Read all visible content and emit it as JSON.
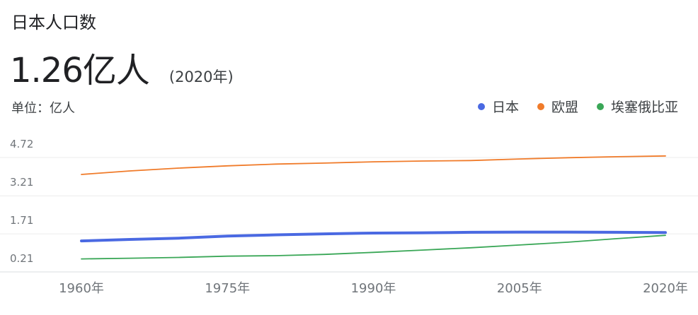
{
  "header": {
    "title": "日本人口数",
    "value": "1.26亿人",
    "year_note": "(2020年)",
    "unit": "单位：亿人"
  },
  "chart_data": {
    "type": "line",
    "x": [
      1960,
      1965,
      1970,
      1975,
      1980,
      1985,
      1990,
      1995,
      2000,
      2005,
      2010,
      2015,
      2020
    ],
    "x_tick_labels": [
      "1960年",
      "1975年",
      "1990年",
      "2005年",
      "2020年"
    ],
    "x_tick_values": [
      1960,
      1975,
      1990,
      2005,
      2020
    ],
    "y_tick_labels": [
      "4.72",
      "3.21",
      "1.71",
      "0.21"
    ],
    "y_tick_values": [
      4.72,
      3.21,
      1.71,
      0.21
    ],
    "ylim": [
      0.0,
      4.72
    ],
    "xlim": [
      1960,
      2020
    ],
    "legend_position": "top-right",
    "grid": true,
    "series": [
      {
        "name": "日本",
        "color": "#4a69e2",
        "values": [
          0.93,
          0.99,
          1.04,
          1.12,
          1.17,
          1.21,
          1.24,
          1.25,
          1.27,
          1.28,
          1.28,
          1.27,
          1.26
        ]
      },
      {
        "name": "欧盟",
        "color": "#f07b2a",
        "values": [
          3.55,
          3.69,
          3.8,
          3.89,
          3.96,
          4.0,
          4.05,
          4.08,
          4.1,
          4.16,
          4.21,
          4.25,
          4.28
        ]
      },
      {
        "name": "埃塞俄比亚",
        "color": "#3aa757",
        "values": [
          0.22,
          0.25,
          0.28,
          0.33,
          0.35,
          0.4,
          0.48,
          0.57,
          0.66,
          0.77,
          0.88,
          1.02,
          1.15
        ]
      }
    ]
  }
}
